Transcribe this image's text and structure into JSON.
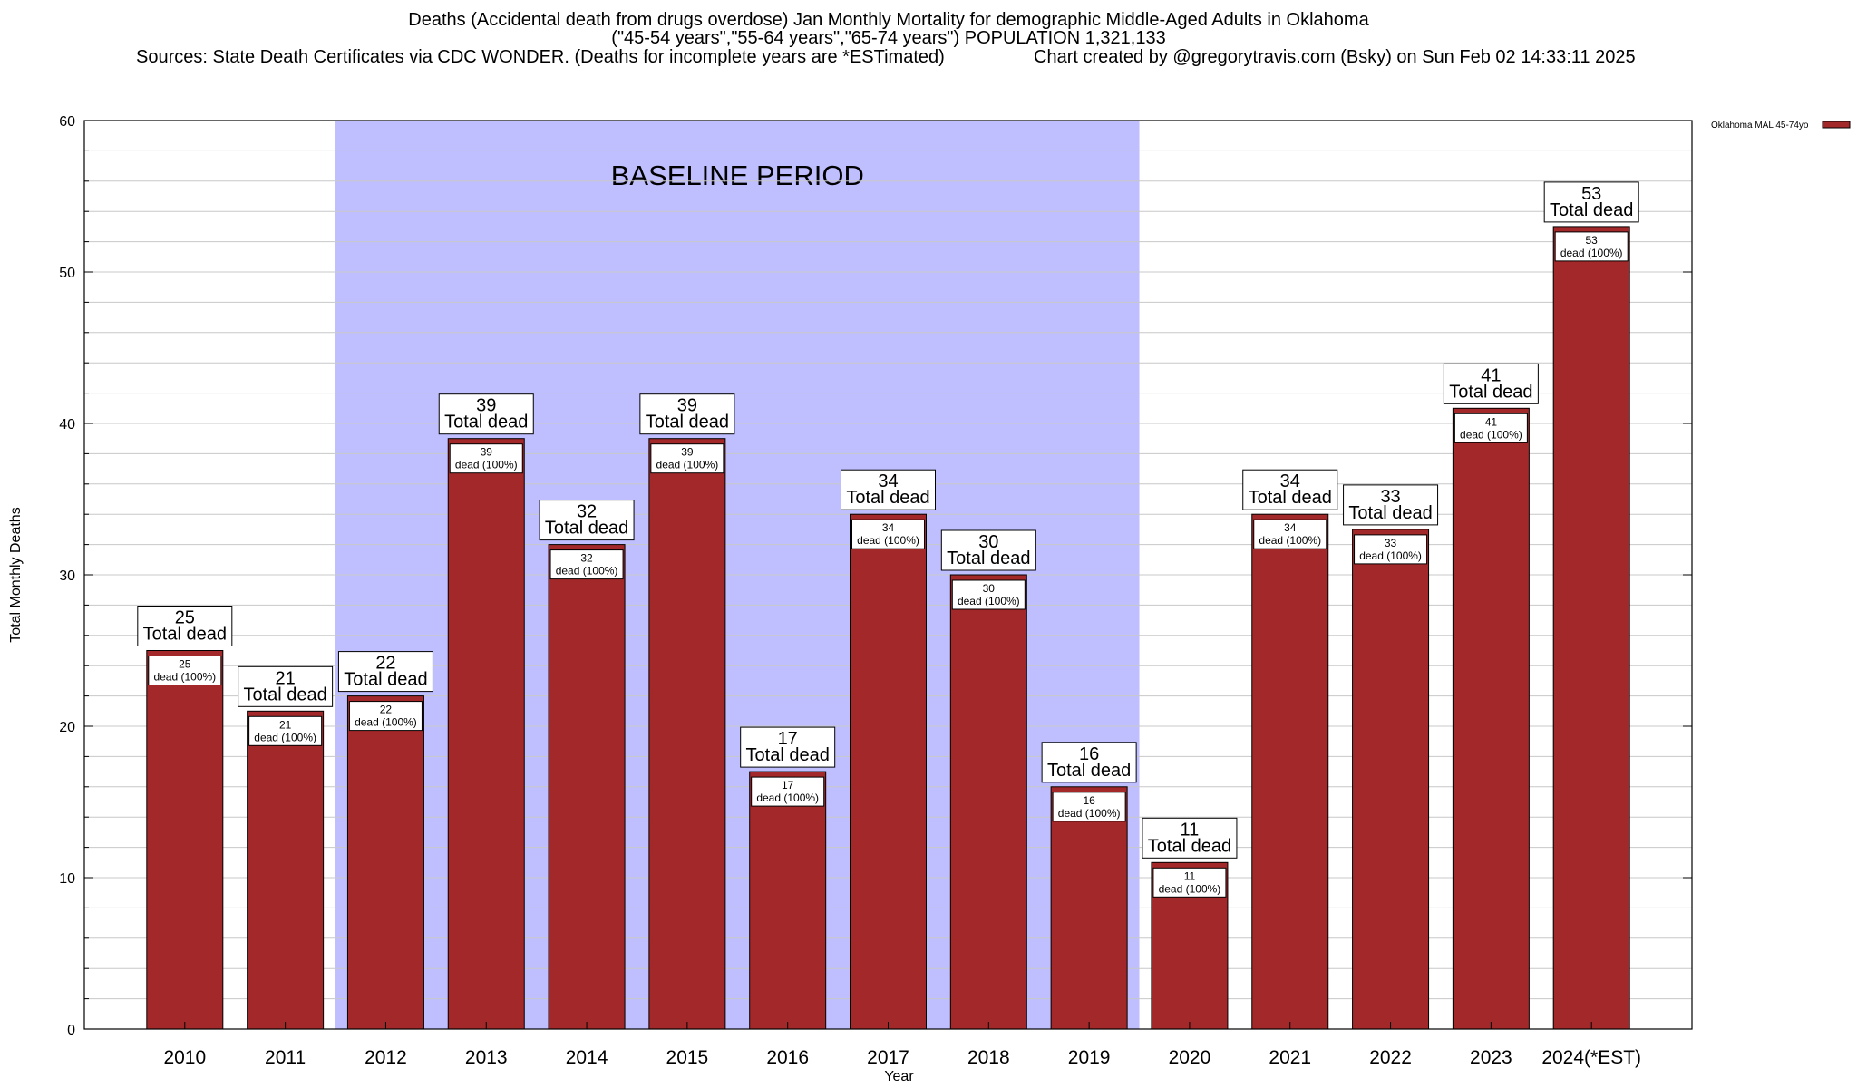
{
  "header": {
    "title_line1": "Deaths (Accidental death from drugs overdose) Jan Monthly Mortality for demographic Middle-Aged Adults in Oklahoma",
    "title_line2": "(\"45-54 years\",\"55-64 years\",\"65-74 years\") POPULATION 1,321,133",
    "sources": "Sources: State Death Certificates via CDC WONDER. (Deaths for incomplete years are *ESTimated)",
    "credit": "Chart created by @gregorytravis.com (Bsky) on Sun Feb 02 14:33:11 2025"
  },
  "colors": {
    "bar": "#a3282a",
    "baseline_shade": "#bfbfff",
    "grid": "#c8c8c8"
  },
  "chart_data": {
    "type": "bar",
    "categories": [
      "2010",
      "2011",
      "2012",
      "2013",
      "2014",
      "2015",
      "2016",
      "2017",
      "2018",
      "2019",
      "2020",
      "2021",
      "2022",
      "2023",
      "2024(*EST)"
    ],
    "series": [
      {
        "name": "Oklahoma MAL 45-74yo",
        "values": [
          25,
          21,
          22,
          39,
          32,
          39,
          17,
          34,
          30,
          16,
          11,
          34,
          33,
          41,
          53
        ]
      }
    ],
    "outer_label_suffix": "Total dead",
    "inner_label_suffix": "dead (100%)",
    "xlabel": "Year",
    "ylabel": "Total Monthly Deaths",
    "ylim": [
      0,
      60
    ],
    "yticks": [
      0,
      10,
      20,
      30,
      40,
      50,
      60
    ],
    "grid": true,
    "legend_position": "top-right",
    "annotation": {
      "text": "BASELINE PERIOD",
      "from_category": "2012",
      "to_category": "2019"
    }
  }
}
